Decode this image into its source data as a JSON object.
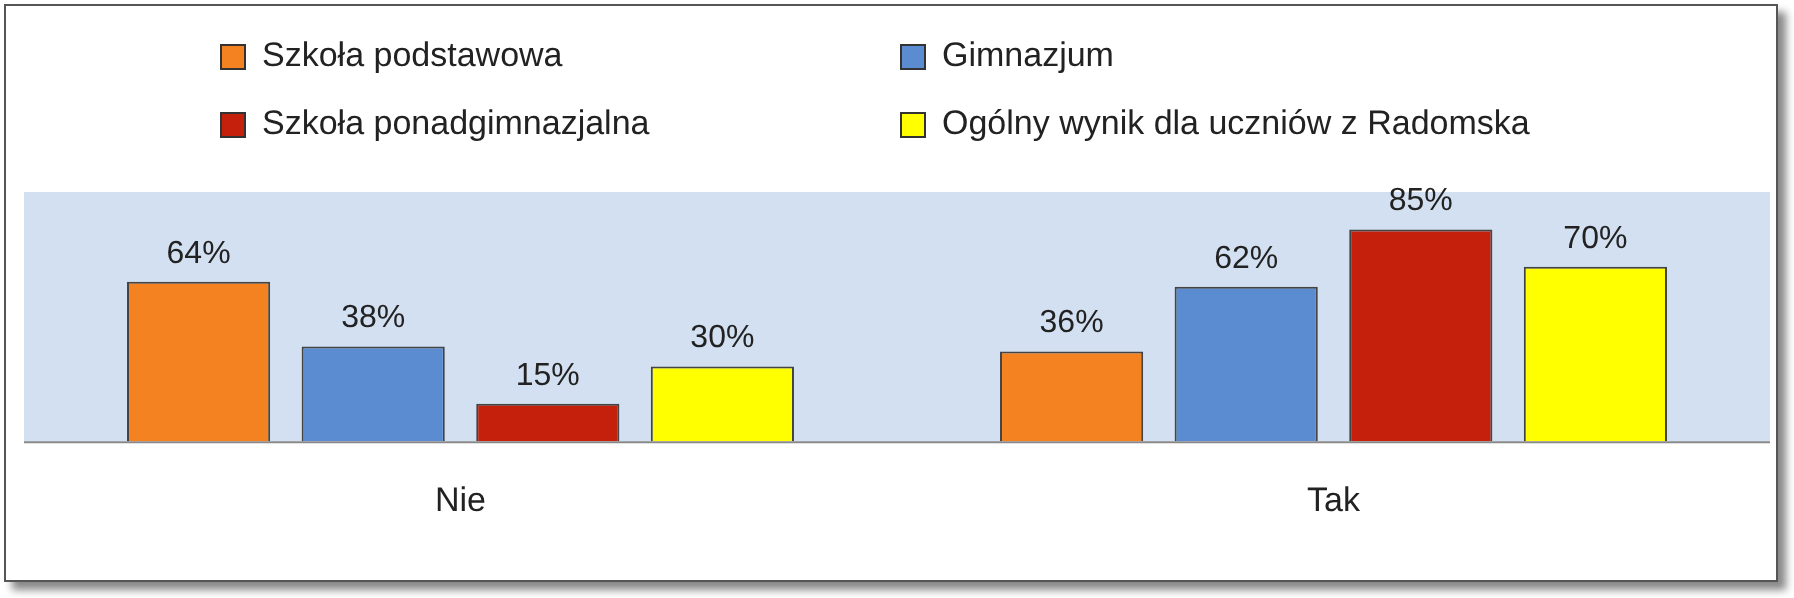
{
  "chart_data": {
    "type": "bar",
    "categories": [
      "Nie",
      "Tak"
    ],
    "series": [
      {
        "name": "Szkoła podstawowa",
        "color": "#f58220",
        "values": [
          64,
          36
        ],
        "value_labels": [
          "64%",
          "36%"
        ]
      },
      {
        "name": "Gimnazjum",
        "color": "#5b8bd0",
        "values": [
          38,
          62
        ],
        "value_labels": [
          "38%",
          "62%"
        ]
      },
      {
        "name": "Szkoła ponadgimnazjalna",
        "color": "#c4200c",
        "values": [
          15,
          85
        ],
        "value_labels": [
          "15%",
          "85%"
        ]
      },
      {
        "name": "Ogólny wynik dla uczniów z Radomska",
        "color": "#ffff00",
        "values": [
          30,
          70
        ],
        "value_labels": [
          "30%",
          "70%"
        ]
      }
    ],
    "legend": "top",
    "grid": false
  }
}
